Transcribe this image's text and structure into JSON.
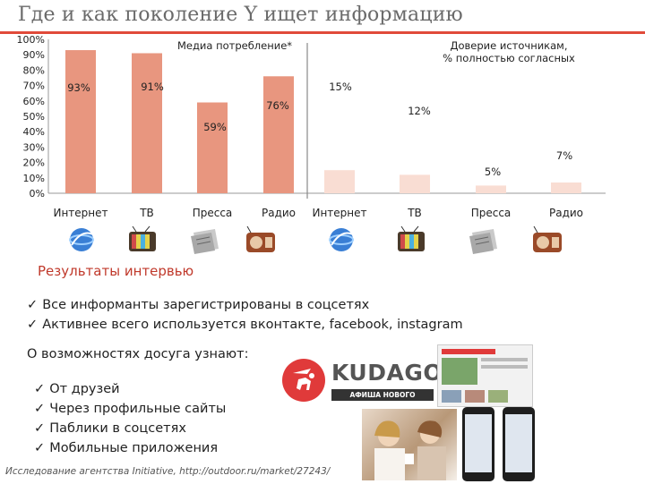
{
  "title": "Где и как поколение Y ищет информацию",
  "chart_data": {
    "type": "bar",
    "y_axis_ticks": [
      "100%",
      "90%",
      "80%",
      "70%",
      "60%",
      "50%",
      "40%",
      "30%",
      "20%",
      "10%",
      "0%"
    ],
    "ylim": [
      0,
      100
    ],
    "charts": [
      {
        "title": "Медиа потребление*",
        "categories": [
          "Интернет",
          "ТВ",
          "Пресса",
          "Радио"
        ],
        "values": [
          93,
          91,
          59,
          76
        ],
        "labels": [
          "93%",
          "91%",
          "59%",
          "76%"
        ],
        "color": "#e8967f"
      },
      {
        "title": "Доверие источникам, % полностью согласных",
        "categories": [
          "Интернет",
          "ТВ",
          "Пресса",
          "Радио"
        ],
        "values": [
          15,
          12,
          5,
          7
        ],
        "labels": [
          "15%",
          "12%",
          "5%",
          "7%"
        ],
        "color": "#f9ddd3"
      }
    ]
  },
  "icons": [
    "globe-icon",
    "tv-icon",
    "newspaper-icon",
    "radio-icon",
    "globe-icon",
    "tv-icon",
    "newspaper-icon",
    "radio-icon"
  ],
  "interview_heading": "Результаты интервью",
  "findings": [
    "Все информанты зарегистрированы в соцсетях",
    "Активнее всего используется вконтакте, facebook, instagram"
  ],
  "leisure_heading": "О возможностях досуга узнают:",
  "leisure_sources": [
    "От друзей",
    "Через профильные сайты",
    "Паблики в соцсетях",
    "Мобильные приложения"
  ],
  "kudago": {
    "name": "KUDAGO.COM",
    "tagline": "АФИША НОВОГО ФОРМАТА"
  },
  "source": "Исследование агентства Initiative, http://outdoor.ru/market/27243/"
}
